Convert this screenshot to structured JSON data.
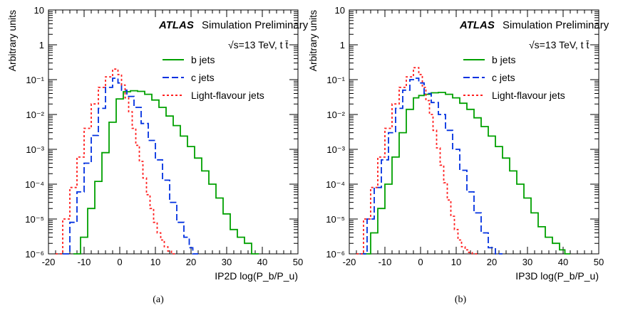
{
  "chart_data": [
    {
      "type": "line",
      "panel_label": "(a)",
      "header": {
        "experiment": "ATLAS",
        "status": "Simulation Preliminary",
        "energy": "√s=13 TeV, t t̄"
      },
      "xlabel": "IP2D log(P_b/P_u)",
      "ylabel": "Arbitrary units",
      "xlim": [
        -20,
        50
      ],
      "ylim": [
        1e-06,
        10
      ],
      "yscale": "log",
      "xticks": [
        "-20",
        "-10",
        "0",
        "10",
        "20",
        "30",
        "40",
        "50"
      ],
      "yticks": [
        "10⁻⁶",
        "10⁻⁵",
        "10⁻⁴",
        "10⁻³",
        "10⁻²",
        "10⁻¹",
        "1",
        "10"
      ],
      "legend_position": "top-right",
      "series": [
        {
          "name": "b jets",
          "color": "#00a000",
          "style": "solid",
          "x": [
            -12,
            -10,
            -8,
            -6,
            -4,
            -2,
            0,
            2,
            4,
            6,
            8,
            10,
            12,
            14,
            16,
            18,
            20,
            22,
            24,
            26,
            28,
            30,
            32,
            34,
            36,
            38
          ],
          "y": [
            1e-06,
            3e-06,
            2e-05,
            0.00012,
            0.0008,
            0.006,
            0.028,
            0.045,
            0.048,
            0.046,
            0.038,
            0.026,
            0.016,
            0.009,
            0.0048,
            0.0024,
            0.0012,
            0.00056,
            0.00024,
            0.0001,
            4e-05,
            1.4e-05,
            5e-06,
            3e-06,
            2e-06,
            1e-06
          ]
        },
        {
          "name": "c jets",
          "color": "#0030e0",
          "style": "dashed",
          "x": [
            -15,
            -13,
            -11,
            -9,
            -7,
            -5,
            -3,
            -1,
            0,
            1,
            3,
            5,
            7,
            9,
            11,
            13,
            15,
            17,
            19,
            20,
            21
          ],
          "y": [
            1e-06,
            8e-06,
            6e-05,
            0.0004,
            0.0025,
            0.015,
            0.06,
            0.11,
            0.08,
            0.05,
            0.033,
            0.016,
            0.0055,
            0.0018,
            0.0005,
            0.00013,
            3e-05,
            8e-06,
            3e-06,
            1.5e-06,
            1e-06
          ]
        },
        {
          "name": "Light-flavour jets",
          "color": "#ff2020",
          "style": "dotted",
          "x": [
            -17,
            -15,
            -13,
            -11,
            -9,
            -7,
            -5,
            -3,
            -1,
            0,
            1,
            2,
            3,
            4,
            5,
            6,
            7,
            8,
            9,
            10,
            11,
            12,
            13,
            14,
            15
          ],
          "y": [
            1e-06,
            1e-05,
            8e-05,
            0.0006,
            0.004,
            0.02,
            0.06,
            0.12,
            0.2,
            0.14,
            0.07,
            0.03,
            0.012,
            0.004,
            0.0013,
            0.00045,
            0.00015,
            5e-05,
            2e-05,
            8e-06,
            4e-06,
            2.5e-06,
            1.6e-06,
            1.2e-06,
            1e-06
          ]
        }
      ]
    },
    {
      "type": "line",
      "panel_label": "(b)",
      "header": {
        "experiment": "ATLAS",
        "status": "Simulation Preliminary",
        "energy": "√s=13 TeV, t t̄"
      },
      "xlabel": "IP3D log(P_b/P_u)",
      "ylabel": "Arbitrary units",
      "xlim": [
        -20,
        50
      ],
      "ylim": [
        1e-06,
        10
      ],
      "yscale": "log",
      "xticks": [
        "-20",
        "-10",
        "0",
        "10",
        "20",
        "30",
        "40",
        "50"
      ],
      "yticks": [
        "10⁻⁶",
        "10⁻⁵",
        "10⁻⁴",
        "10⁻³",
        "10⁻²",
        "10⁻¹",
        "1",
        "10"
      ],
      "legend_position": "top-right",
      "series": [
        {
          "name": "b jets",
          "color": "#00a000",
          "style": "solid",
          "x": [
            -15,
            -13,
            -11,
            -9,
            -7,
            -5,
            -3,
            -1,
            0,
            2,
            4,
            6,
            8,
            10,
            12,
            14,
            16,
            18,
            20,
            22,
            24,
            26,
            28,
            30,
            32,
            34,
            36,
            38,
            40,
            41
          ],
          "y": [
            1e-06,
            4e-06,
            2e-05,
            0.0001,
            0.0006,
            0.003,
            0.014,
            0.03,
            0.035,
            0.038,
            0.042,
            0.043,
            0.038,
            0.03,
            0.021,
            0.014,
            0.008,
            0.0045,
            0.0024,
            0.0012,
            0.00056,
            0.00024,
            0.0001,
            4e-05,
            1.5e-05,
            6e-06,
            3e-06,
            2e-06,
            1.3e-06,
            1e-06
          ]
        },
        {
          "name": "c jets",
          "color": "#0030e0",
          "style": "dashed",
          "x": [
            -16,
            -14,
            -12,
            -10,
            -8,
            -6,
            -4,
            -2,
            -1,
            0,
            2,
            4,
            6,
            8,
            10,
            12,
            14,
            16,
            18,
            20,
            22
          ],
          "y": [
            1e-06,
            1e-05,
            8e-05,
            0.0005,
            0.003,
            0.015,
            0.05,
            0.1,
            0.11,
            0.08,
            0.04,
            0.022,
            0.01,
            0.0035,
            0.001,
            0.00025,
            6e-05,
            1.5e-05,
            4e-06,
            1.5e-06,
            1e-06
          ]
        },
        {
          "name": "Light-flavour jets",
          "color": "#ff2020",
          "style": "dotted",
          "x": [
            -17,
            -15,
            -13,
            -11,
            -9,
            -7,
            -5,
            -3,
            -1,
            0,
            1,
            2,
            3,
            4,
            5,
            6,
            7,
            8,
            9,
            10,
            11,
            12,
            13,
            14,
            15
          ],
          "y": [
            1e-06,
            1e-05,
            8e-05,
            0.0006,
            0.004,
            0.02,
            0.06,
            0.12,
            0.22,
            0.14,
            0.06,
            0.025,
            0.01,
            0.0035,
            0.0011,
            0.00035,
            0.00011,
            3.5e-05,
            1.2e-05,
            5e-06,
            2.5e-06,
            1.6e-06,
            1.3e-06,
            1.1e-06,
            1e-06
          ]
        }
      ]
    }
  ]
}
